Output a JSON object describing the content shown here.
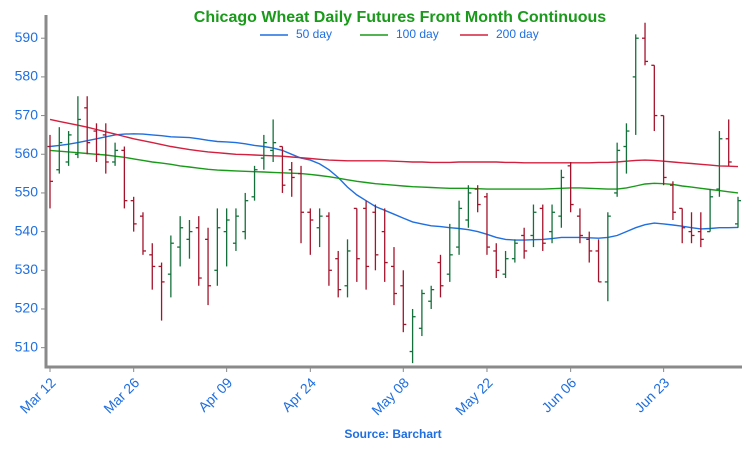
{
  "chart_data": {
    "type": "ohlc",
    "title": "Chicago Wheat Daily Futures Front Month Continuous",
    "source": "Source: Barchart",
    "categories": [
      "Mar 12",
      null,
      null,
      null,
      null,
      null,
      null,
      null,
      null,
      "Mar 26",
      null,
      null,
      null,
      null,
      null,
      null,
      null,
      null,
      null,
      "Apr 09",
      null,
      null,
      null,
      null,
      null,
      null,
      null,
      null,
      "Apr 24",
      null,
      null,
      null,
      null,
      null,
      null,
      null,
      null,
      null,
      "May 08",
      null,
      null,
      null,
      null,
      null,
      null,
      null,
      null,
      "May 22",
      null,
      null,
      null,
      null,
      null,
      null,
      null,
      null,
      "Jun 06",
      null,
      null,
      null,
      null,
      null,
      null,
      null,
      null,
      null,
      "Jun 23",
      null,
      null,
      null,
      null,
      null,
      null,
      null,
      null
    ],
    "open": [
      562,
      556,
      558,
      560,
      572,
      566,
      565,
      558,
      561,
      548,
      544,
      534,
      531,
      529,
      536,
      538,
      541,
      538,
      530,
      540,
      537,
      540,
      549,
      559,
      561,
      562,
      556,
      555,
      545,
      541,
      544,
      533,
      526,
      546,
      546,
      545,
      540,
      531,
      526,
      509,
      515,
      522,
      532,
      529,
      536,
      543,
      551,
      549,
      535,
      529,
      533,
      539,
      539,
      546,
      540,
      544,
      557,
      544,
      538,
      535,
      527,
      550,
      562,
      580,
      590,
      583,
      570,
      552,
      546,
      540,
      540,
      540,
      551,
      564,
      542
    ],
    "high": [
      565,
      567,
      566,
      575,
      575,
      568,
      568,
      563,
      562,
      549,
      545,
      537,
      532,
      539,
      544,
      543,
      544,
      541,
      546,
      546,
      546,
      550,
      557,
      565,
      569,
      562,
      558,
      557,
      546,
      546,
      545,
      535,
      538,
      546,
      548,
      547,
      546,
      536,
      530,
      520,
      525,
      526,
      534,
      542,
      548,
      552,
      552,
      550,
      537,
      535,
      538,
      541,
      547,
      547,
      547,
      556,
      558,
      546,
      540,
      538,
      545,
      563,
      568,
      591,
      594,
      583,
      570,
      553,
      546,
      545,
      545,
      551,
      566,
      569,
      549
    ],
    "low": [
      546,
      555,
      557,
      559,
      560,
      558,
      555,
      557,
      546,
      540,
      534,
      525,
      517,
      523,
      531,
      533,
      526,
      521,
      526,
      531,
      535,
      538,
      548,
      556,
      558,
      550,
      549,
      537,
      534,
      536,
      526,
      523,
      523,
      527,
      525,
      530,
      527,
      521,
      514,
      506,
      513,
      520,
      523,
      527,
      534,
      541,
      545,
      534,
      528,
      528,
      532,
      533,
      536,
      535,
      537,
      541,
      545,
      537,
      532,
      527,
      522,
      549,
      555,
      565,
      583,
      566,
      552,
      543,
      537,
      537,
      536,
      540,
      549,
      557,
      541
    ],
    "close": [
      553,
      563,
      565,
      569,
      563,
      560,
      558,
      561,
      548,
      542,
      535,
      531,
      527,
      537,
      541,
      540,
      528,
      526,
      541,
      543,
      544,
      548,
      556,
      563,
      563,
      552,
      554,
      545,
      543,
      544,
      530,
      525,
      535,
      533,
      531,
      534,
      532,
      524,
      516,
      518,
      524,
      525,
      526,
      534,
      546,
      550,
      547,
      536,
      530,
      533,
      537,
      535,
      545,
      537,
      545,
      554,
      547,
      539,
      535,
      527,
      544,
      561,
      566,
      590,
      584,
      570,
      554,
      545,
      541,
      539,
      538,
      549,
      564,
      558,
      548
    ],
    "up_color": "#13703a",
    "down_color": "#a3142c",
    "series": [
      {
        "name": "50 day",
        "color": "#1f6fe0",
        "values": [
          562,
          562.3,
          562.6,
          563,
          563.5,
          564,
          564.5,
          565,
          565.2,
          565.3,
          565.2,
          565,
          564.8,
          564.5,
          564.4,
          564.3,
          564,
          563.6,
          563.3,
          563.2,
          563,
          562.7,
          562.3,
          562,
          561.6,
          561,
          560,
          559,
          558.5,
          557.5,
          556,
          554,
          551.5,
          549.5,
          548,
          546.5,
          545.5,
          544.5,
          543.5,
          542.5,
          542,
          541.5,
          541.3,
          541,
          540.8,
          540.5,
          540,
          539.3,
          538.5,
          538,
          537.8,
          537.8,
          537.9,
          538,
          538.2,
          538.5,
          538.5,
          538.5,
          538.4,
          538.3,
          538.5,
          539,
          540,
          541,
          541.8,
          542.2,
          542,
          541.7,
          541.4,
          541,
          540.7,
          540.8,
          541,
          541,
          541.1
        ]
      },
      {
        "name": "100 day",
        "color": "#1a9a1a",
        "values": [
          561,
          560.8,
          560.6,
          560.4,
          560.2,
          560,
          559.8,
          559.5,
          559.2,
          558.8,
          558.4,
          558,
          557.7,
          557.4,
          557,
          556.7,
          556.4,
          556.1,
          555.9,
          555.8,
          555.7,
          555.6,
          555.5,
          555.4,
          555.3,
          555.2,
          555.1,
          555,
          554.8,
          554.5,
          554.2,
          553.8,
          553.4,
          553,
          552.7,
          552.4,
          552.2,
          552,
          551.8,
          551.6,
          551.5,
          551.4,
          551.3,
          551.2,
          551.2,
          551.2,
          551.1,
          551,
          551,
          551,
          551,
          551,
          551,
          551,
          551.1,
          551.2,
          551.3,
          551.3,
          551.2,
          551.1,
          551,
          551,
          551.3,
          551.8,
          552.3,
          552.5,
          552.4,
          552.2,
          551.8,
          551.5,
          551.2,
          550.9,
          550.6,
          550.3,
          550
        ]
      },
      {
        "name": "200 day",
        "color": "#d3203f",
        "values": [
          569,
          568.5,
          568,
          567.5,
          567,
          566.4,
          565.8,
          565.2,
          564.6,
          564,
          563.5,
          563,
          562.5,
          562,
          561.6,
          561.2,
          560.9,
          560.6,
          560.4,
          560.2,
          560,
          559.9,
          559.8,
          559.7,
          559.6,
          559.5,
          559.3,
          559.1,
          558.9,
          558.7,
          558.5,
          558.4,
          558.3,
          558.3,
          558.3,
          558.3,
          558.3,
          558.2,
          558.1,
          558,
          558,
          557.9,
          557.9,
          557.9,
          558,
          558,
          558,
          558,
          558,
          557.9,
          557.9,
          557.8,
          557.8,
          557.8,
          557.8,
          557.8,
          557.8,
          557.8,
          557.8,
          557.9,
          557.9,
          558,
          558.2,
          558.4,
          558.5,
          558.4,
          558.2,
          558,
          557.8,
          557.6,
          557.4,
          557.2,
          557,
          556.9,
          556.8
        ]
      }
    ],
    "ylim": [
      505,
      596
    ],
    "yticks": [
      510,
      520,
      530,
      540,
      550,
      560,
      570,
      580,
      590
    ]
  }
}
